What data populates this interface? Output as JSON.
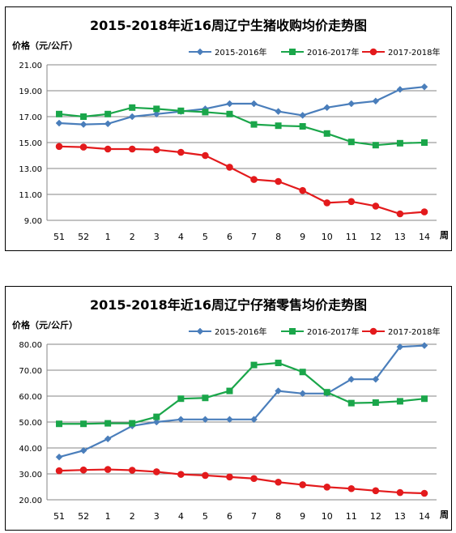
{
  "chart_data": [
    {
      "type": "line",
      "title": "2015-2018年近16周辽宁生猪收购均价走势图",
      "ylabel": "价格（元/公斤）",
      "xlabel": "周",
      "categories": [
        "51",
        "52",
        "1",
        "2",
        "3",
        "4",
        "5",
        "6",
        "7",
        "8",
        "9",
        "10",
        "11",
        "12",
        "13",
        "14"
      ],
      "ylim": [
        9.0,
        21.0
      ],
      "yticks": [
        "9.00",
        "11.00",
        "13.00",
        "15.00",
        "17.00",
        "19.00",
        "21.00"
      ],
      "ytick_values": [
        9,
        11,
        13,
        15,
        17,
        19,
        21
      ],
      "grid": true,
      "legend_position": "top",
      "series": [
        {
          "name": "2015-2016年",
          "color": "#4a7ebb",
          "marker": "diamond",
          "values": [
            16.5,
            16.4,
            16.45,
            17.0,
            17.2,
            17.4,
            17.6,
            18.0,
            18.0,
            17.4,
            17.1,
            17.7,
            18.0,
            18.2,
            19.1,
            19.3
          ]
        },
        {
          "name": "2016-2017年",
          "color": "#1aa64a",
          "marker": "square",
          "values": [
            17.2,
            17.0,
            17.2,
            17.7,
            17.6,
            17.45,
            17.35,
            17.2,
            16.4,
            16.3,
            16.25,
            15.7,
            15.05,
            14.8,
            14.95,
            15.0
          ]
        },
        {
          "name": "2017-2018年",
          "color": "#e31a1c",
          "marker": "circle",
          "values": [
            14.7,
            14.65,
            14.5,
            14.5,
            14.45,
            14.25,
            14.0,
            13.1,
            12.15,
            12.0,
            11.3,
            10.35,
            10.45,
            10.1,
            9.5,
            9.65
          ]
        }
      ]
    },
    {
      "type": "line",
      "title": "2015-2018年近16周辽宁仔猪零售均价走势图",
      "ylabel": "价格（元/公斤）",
      "xlabel": "周",
      "categories": [
        "51",
        "52",
        "1",
        "2",
        "3",
        "4",
        "5",
        "6",
        "7",
        "8",
        "9",
        "10",
        "11",
        "12",
        "13",
        "14"
      ],
      "ylim": [
        20.0,
        80.0
      ],
      "yticks": [
        "20.00",
        "30.00",
        "40.00",
        "50.00",
        "60.00",
        "70.00",
        "80.00"
      ],
      "ytick_values": [
        20,
        30,
        40,
        50,
        60,
        70,
        80
      ],
      "grid": true,
      "legend_position": "top",
      "series": [
        {
          "name": "2015-2016年",
          "color": "#4a7ebb",
          "marker": "diamond",
          "values": [
            36.5,
            39.0,
            43.5,
            48.5,
            50.0,
            51.0,
            51.0,
            51.0,
            51.0,
            62.0,
            61.0,
            61.0,
            66.5,
            66.5,
            79.0,
            79.5
          ]
        },
        {
          "name": "2016-2017年",
          "color": "#1aa64a",
          "marker": "square",
          "values": [
            49.3,
            49.3,
            49.5,
            49.5,
            52.0,
            59.0,
            59.3,
            62.0,
            72.0,
            72.8,
            69.3,
            61.5,
            57.3,
            57.5,
            58.0,
            59.0
          ]
        },
        {
          "name": "2017-2018年",
          "color": "#e31a1c",
          "marker": "circle",
          "values": [
            31.2,
            31.5,
            31.7,
            31.4,
            30.8,
            29.8,
            29.4,
            28.8,
            28.2,
            26.8,
            25.8,
            24.9,
            24.3,
            23.5,
            22.8,
            22.5
          ]
        }
      ]
    }
  ]
}
